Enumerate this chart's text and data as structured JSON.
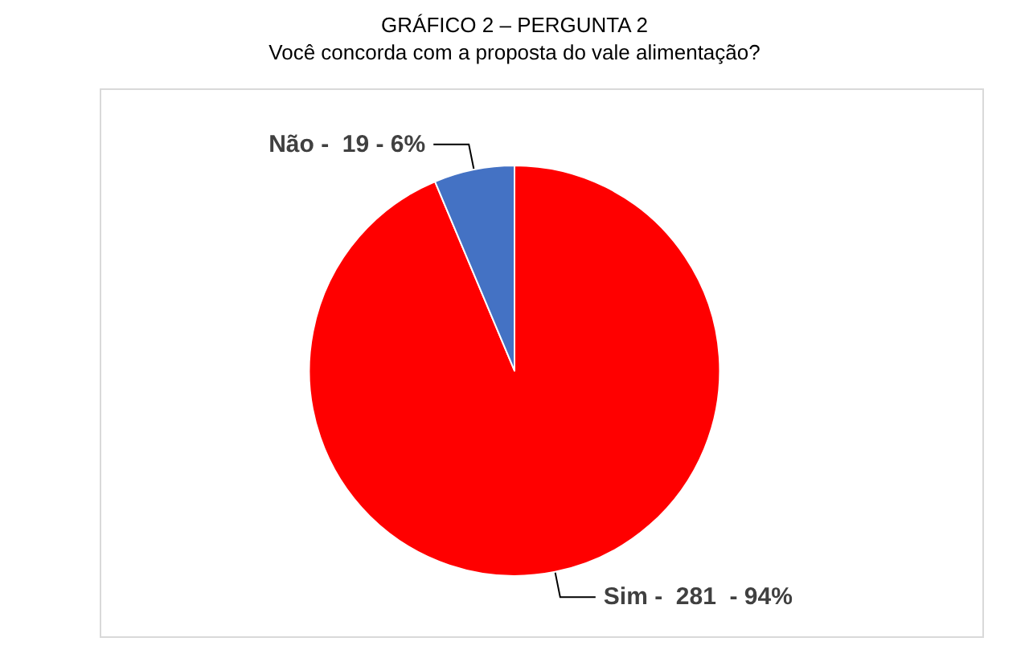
{
  "chart_data": {
    "type": "pie",
    "title": "GRÁFICO 2 – PERGUNTA 2",
    "subtitle": "Você concorda com a proposta do vale alimentação?",
    "categories": [
      "Sim -",
      "Não -"
    ],
    "values": [
      281,
      19
    ],
    "colors": [
      "#ff0000",
      "#4472c4"
    ],
    "value_labels": [
      "281  - 94%",
      "19 - 6%"
    ],
    "legend": false
  }
}
